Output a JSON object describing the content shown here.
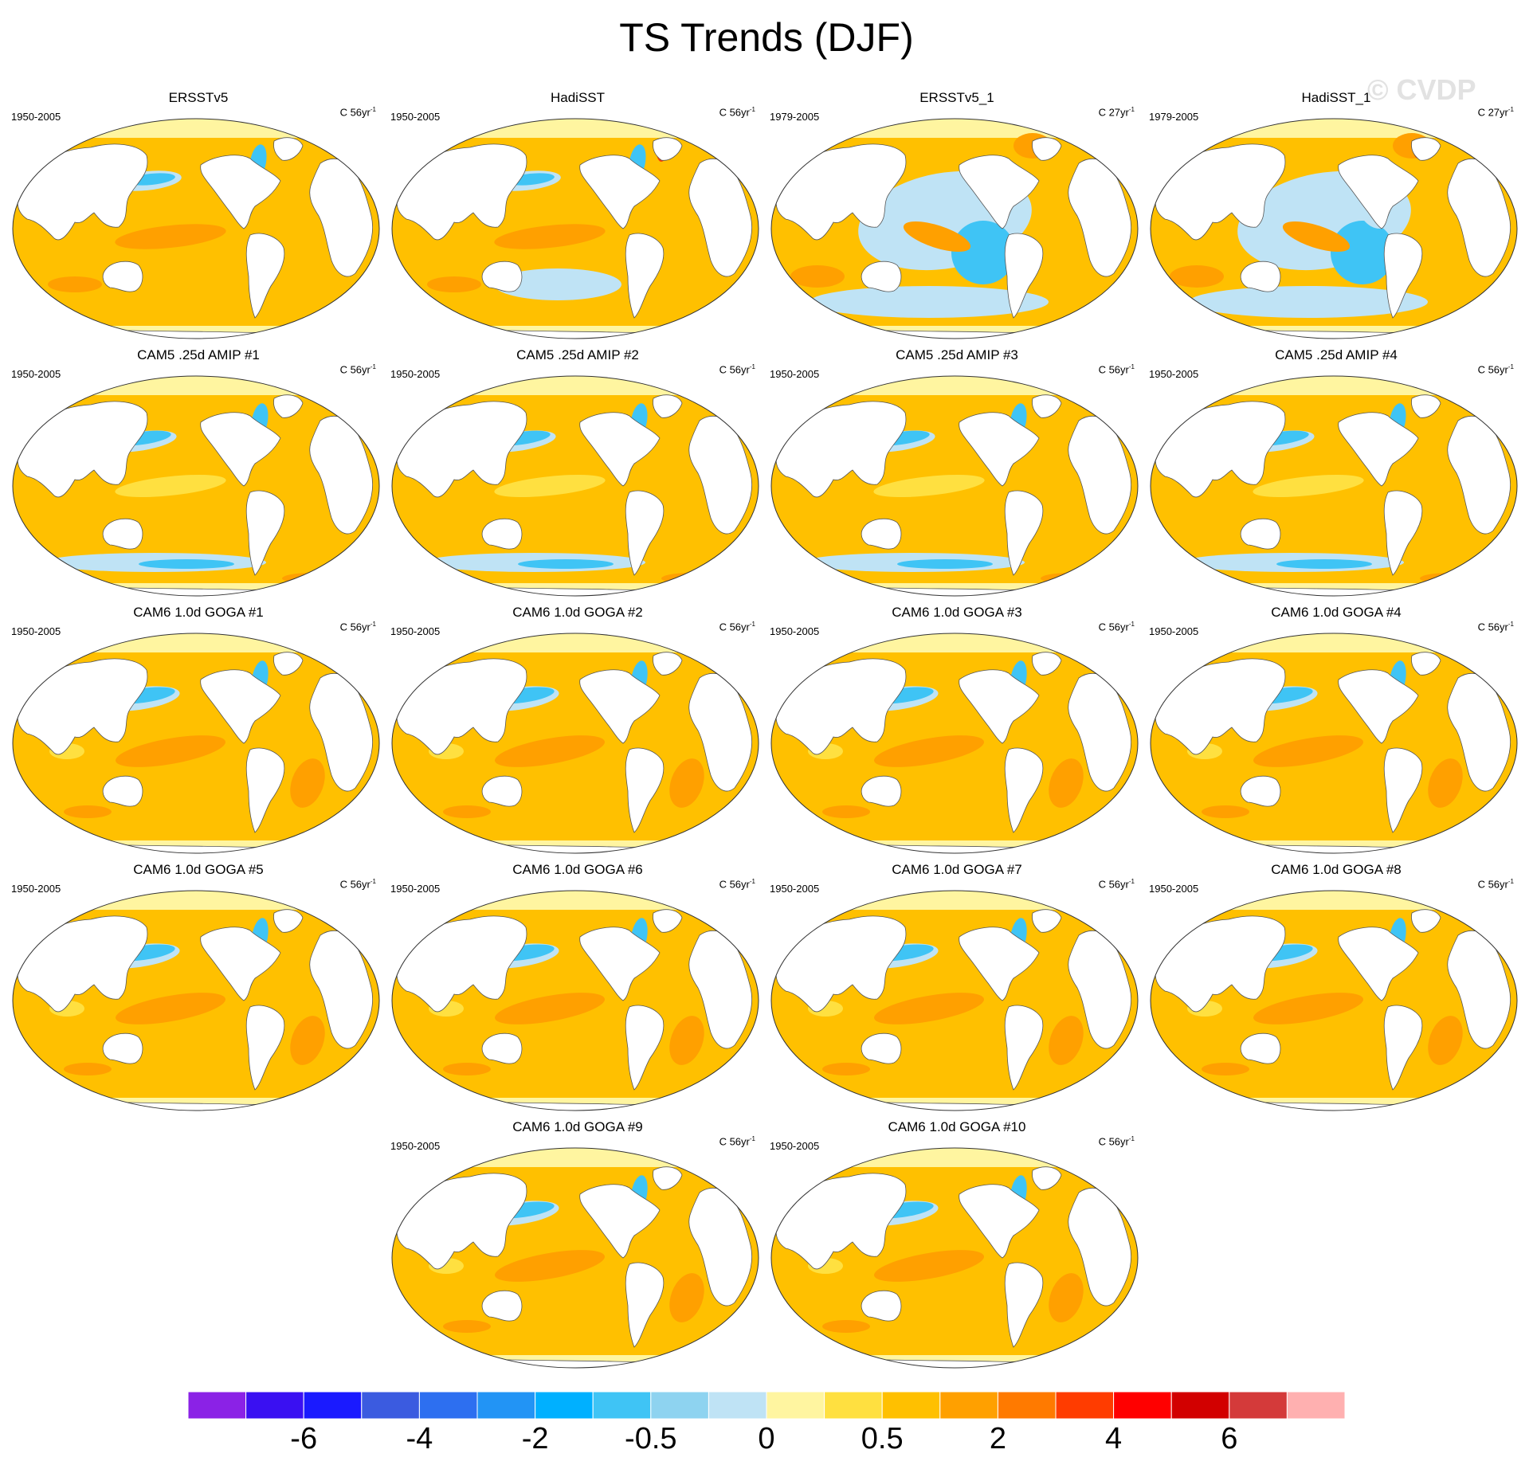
{
  "title": "TS Trends (DJF)",
  "watermark": "© CVDP",
  "panels": [
    {
      "name": "ERSSTv5",
      "years": "1950-2005",
      "units": "C 56yr",
      "sup": "-1",
      "scheme": "obs"
    },
    {
      "name": "HadiSST",
      "years": "1950-2005",
      "units": "C 56yr",
      "sup": "-1",
      "scheme": "obs_noisy"
    },
    {
      "name": "ERSSTv5_1",
      "years": "1979-2005",
      "units": "C 27yr",
      "sup": "-1",
      "scheme": "short"
    },
    {
      "name": "HadiSST_1",
      "years": "1979-2005",
      "units": "C 27yr",
      "sup": "-1",
      "scheme": "short_noisy"
    },
    {
      "name": "CAM5 .25d AMIP #1",
      "years": "1950-2005",
      "units": "C 56yr",
      "sup": "-1",
      "scheme": "amip"
    },
    {
      "name": "CAM5 .25d AMIP #2",
      "years": "1950-2005",
      "units": "C 56yr",
      "sup": "-1",
      "scheme": "amip"
    },
    {
      "name": "CAM5 .25d AMIP #3",
      "years": "1950-2005",
      "units": "C 56yr",
      "sup": "-1",
      "scheme": "amip"
    },
    {
      "name": "CAM5 .25d AMIP #4",
      "years": "1950-2005",
      "units": "C 56yr",
      "sup": "-1",
      "scheme": "amip"
    },
    {
      "name": "CAM6 1.0d GOGA #1",
      "years": "1950-2005",
      "units": "C 56yr",
      "sup": "-1",
      "scheme": "goga"
    },
    {
      "name": "CAM6 1.0d GOGA #2",
      "years": "1950-2005",
      "units": "C 56yr",
      "sup": "-1",
      "scheme": "goga"
    },
    {
      "name": "CAM6 1.0d GOGA #3",
      "years": "1950-2005",
      "units": "C 56yr",
      "sup": "-1",
      "scheme": "goga"
    },
    {
      "name": "CAM6 1.0d GOGA #4",
      "years": "1950-2005",
      "units": "C 56yr",
      "sup": "-1",
      "scheme": "goga"
    },
    {
      "name": "CAM6 1.0d GOGA #5",
      "years": "1950-2005",
      "units": "C 56yr",
      "sup": "-1",
      "scheme": "goga"
    },
    {
      "name": "CAM6 1.0d GOGA #6",
      "years": "1950-2005",
      "units": "C 56yr",
      "sup": "-1",
      "scheme": "goga"
    },
    {
      "name": "CAM6 1.0d GOGA #7",
      "years": "1950-2005",
      "units": "C 56yr",
      "sup": "-1",
      "scheme": "goga"
    },
    {
      "name": "CAM6 1.0d GOGA #8",
      "years": "1950-2005",
      "units": "C 56yr",
      "sup": "-1",
      "scheme": "goga"
    },
    {
      "name": "CAM6 1.0d GOGA #9",
      "years": "1950-2005",
      "units": "C 56yr",
      "sup": "-1",
      "scheme": "goga"
    },
    {
      "name": "CAM6 1.0d GOGA #10",
      "years": "1950-2005",
      "units": "C 56yr",
      "sup": "-1",
      "scheme": "goga"
    }
  ],
  "colorbar": {
    "colors": [
      "#8b22e6",
      "#3a10f2",
      "#1a1aff",
      "#3b5be0",
      "#2d6ff0",
      "#2294f5",
      "#00b0ff",
      "#3fc4f5",
      "#8ed3f0",
      "#bfe3f5",
      "#fff5a0",
      "#ffe040",
      "#ffc000",
      "#ffa000",
      "#ff7a00",
      "#ff3c00",
      "#ff0000",
      "#d20000",
      "#d43a3a",
      "#ffb0b0"
    ],
    "labels": [
      "-6",
      "-4",
      "-2",
      "-0.5",
      "0",
      "0.5",
      "2",
      "4",
      "6"
    ]
  },
  "palette": {
    "land": "#ffffff",
    "ocean_base": "#ffc000",
    "ocean_light": "#ffe040",
    "ocean_pale": "#fff5a0",
    "ocean_warm": "#ffa000",
    "cool_pale": "#bfe3f5",
    "cool": "#3fc4f5",
    "cool_dark": "#2294f5",
    "hot": "#ff3c00",
    "outline": "#555555"
  }
}
